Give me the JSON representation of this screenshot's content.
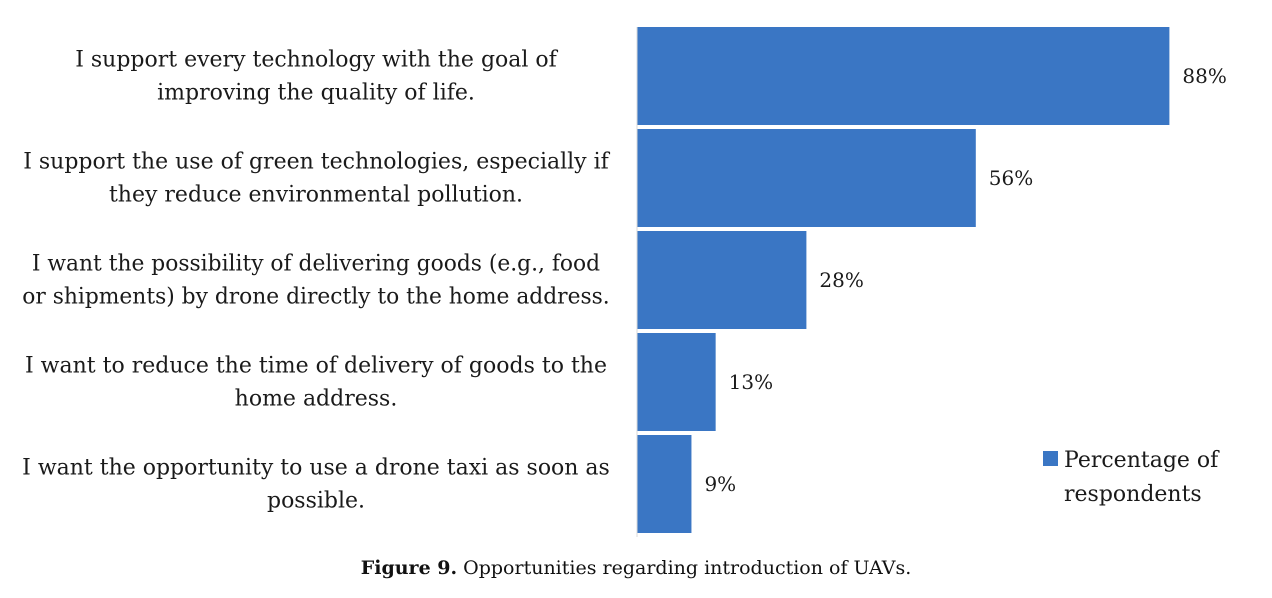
{
  "chart_data": {
    "type": "bar",
    "orientation": "horizontal",
    "categories": [
      [
        "I support every technology with the goal of",
        "improving the quality of life."
      ],
      [
        "I support the use of green technologies, especially if",
        "they reduce environmental pollution."
      ],
      [
        "I want the possibility of delivering goods (e.g., food",
        "or shipments) by drone directly to the home address."
      ],
      [
        "I want to reduce the time of delivery of goods to the",
        "home address."
      ],
      [
        "I want the opportunity to use a drone taxi as soon as",
        "possible."
      ]
    ],
    "series": [
      {
        "name": "Percentage of respondents",
        "values": [
          88,
          56,
          28,
          13,
          9
        ],
        "color": "#3a76c4"
      }
    ],
    "value_labels": [
      "88%",
      "56%",
      "28%",
      "13%",
      "9%"
    ],
    "xlim": [
      0,
      100
    ],
    "grid": false,
    "legend": {
      "position": "right",
      "lines": [
        "Percentage of",
        "respondents"
      ]
    }
  },
  "caption": {
    "label": "Figure 9.",
    "text": " Opportunities regarding introduction of UAVs."
  }
}
